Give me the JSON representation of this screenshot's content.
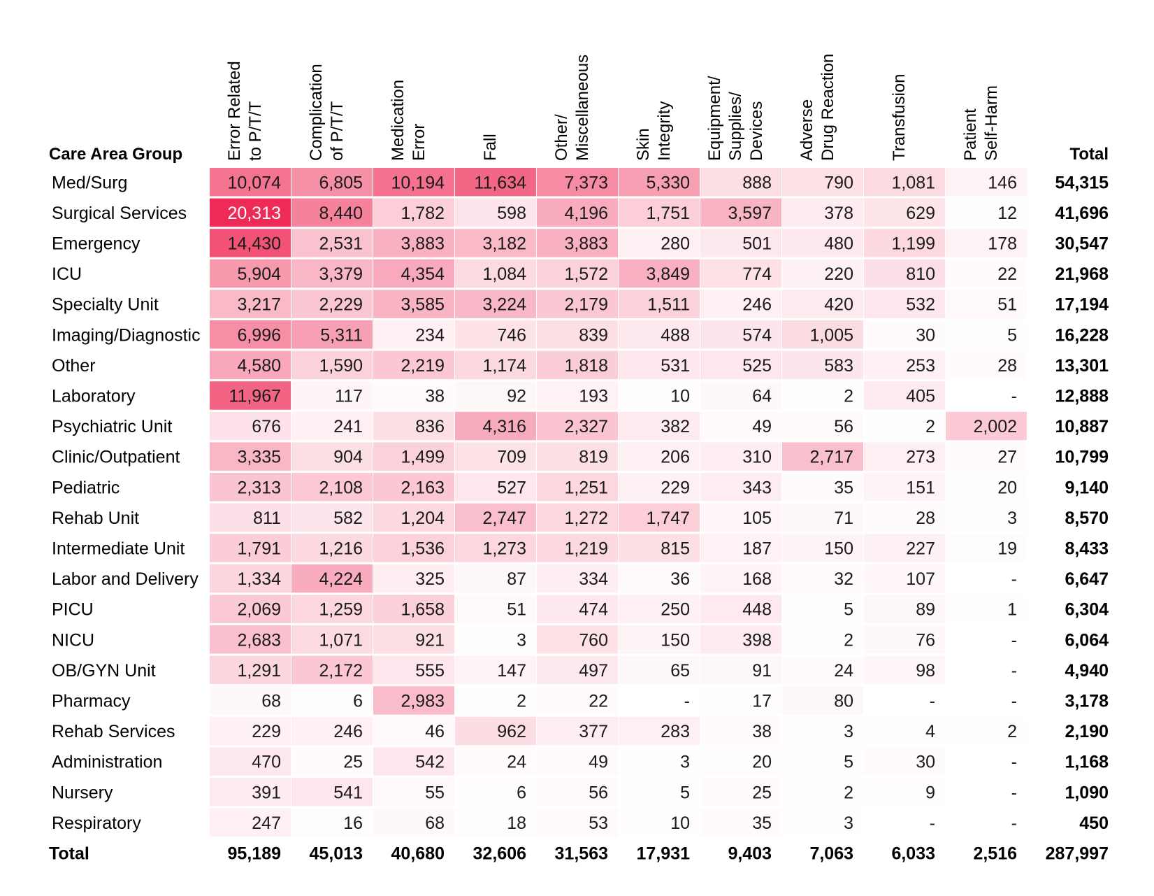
{
  "chart_data": {
    "type": "heatmap",
    "row_header": "Care Area Group",
    "total_label": "Total",
    "columns": [
      [
        "Error Related",
        "to P/T/T"
      ],
      [
        "Complication",
        "of P/T/T"
      ],
      [
        "Medication",
        "Error"
      ],
      [
        "Fall"
      ],
      [
        "Other/",
        "Miscellaneous"
      ],
      [
        "Skin",
        "Integrity"
      ],
      [
        "Equipment/",
        "Supplies/",
        "Devices"
      ],
      [
        "Adverse",
        "Drug Reaction"
      ],
      [
        "Transfusion"
      ],
      [
        "Patient",
        "Self-Harm"
      ]
    ],
    "rows": [
      {
        "label": "Med/Surg",
        "values": [
          "10,074",
          "6,805",
          "10,194",
          "11,634",
          "7,373",
          "5,330",
          "888",
          "790",
          "1,081",
          "146"
        ],
        "total": "54,315"
      },
      {
        "label": "Surgical Services",
        "values": [
          "20,313",
          "8,440",
          "1,782",
          "598",
          "4,196",
          "1,751",
          "3,597",
          "378",
          "629",
          "12"
        ],
        "total": "41,696"
      },
      {
        "label": "Emergency",
        "values": [
          "14,430",
          "2,531",
          "3,883",
          "3,182",
          "3,883",
          "280",
          "501",
          "480",
          "1,199",
          "178"
        ],
        "total": "30,547"
      },
      {
        "label": "ICU",
        "values": [
          "5,904",
          "3,379",
          "4,354",
          "1,084",
          "1,572",
          "3,849",
          "774",
          "220",
          "810",
          "22"
        ],
        "total": "21,968"
      },
      {
        "label": "Specialty Unit",
        "values": [
          "3,217",
          "2,229",
          "3,585",
          "3,224",
          "2,179",
          "1,511",
          "246",
          "420",
          "532",
          "51"
        ],
        "total": "17,194"
      },
      {
        "label": "Imaging/Diagnostic",
        "values": [
          "6,996",
          "5,311",
          "234",
          "746",
          "839",
          "488",
          "574",
          "1,005",
          "30",
          "5"
        ],
        "total": "16,228"
      },
      {
        "label": "Other",
        "values": [
          "4,580",
          "1,590",
          "2,219",
          "1,174",
          "1,818",
          "531",
          "525",
          "583",
          "253",
          "28"
        ],
        "total": "13,301"
      },
      {
        "label": "Laboratory",
        "values": [
          "11,967",
          "117",
          "38",
          "92",
          "193",
          "10",
          "64",
          "2",
          "405",
          "-"
        ],
        "total": "12,888"
      },
      {
        "label": "Psychiatric Unit",
        "values": [
          "676",
          "241",
          "836",
          "4,316",
          "2,327",
          "382",
          "49",
          "56",
          "2",
          "2,002"
        ],
        "total": "10,887"
      },
      {
        "label": "Clinic/Outpatient",
        "values": [
          "3,335",
          "904",
          "1,499",
          "709",
          "819",
          "206",
          "310",
          "2,717",
          "273",
          "27"
        ],
        "total": "10,799"
      },
      {
        "label": "Pediatric",
        "values": [
          "2,313",
          "2,108",
          "2,163",
          "527",
          "1,251",
          "229",
          "343",
          "35",
          "151",
          "20"
        ],
        "total": "9,140"
      },
      {
        "label": "Rehab Unit",
        "values": [
          "811",
          "582",
          "1,204",
          "2,747",
          "1,272",
          "1,747",
          "105",
          "71",
          "28",
          "3"
        ],
        "total": "8,570"
      },
      {
        "label": "Intermediate Unit",
        "values": [
          "1,791",
          "1,216",
          "1,536",
          "1,273",
          "1,219",
          "815",
          "187",
          "150",
          "227",
          "19"
        ],
        "total": "8,433"
      },
      {
        "label": "Labor and Delivery",
        "values": [
          "1,334",
          "4,224",
          "325",
          "87",
          "334",
          "36",
          "168",
          "32",
          "107",
          "-"
        ],
        "total": "6,647"
      },
      {
        "label": "PICU",
        "values": [
          "2,069",
          "1,259",
          "1,658",
          "51",
          "474",
          "250",
          "448",
          "5",
          "89",
          "1"
        ],
        "total": "6,304"
      },
      {
        "label": "NICU",
        "values": [
          "2,683",
          "1,071",
          "921",
          "3",
          "760",
          "150",
          "398",
          "2",
          "76",
          "-"
        ],
        "total": "6,064"
      },
      {
        "label": "OB/GYN Unit",
        "values": [
          "1,291",
          "2,172",
          "555",
          "147",
          "497",
          "65",
          "91",
          "24",
          "98",
          "-"
        ],
        "total": "4,940"
      },
      {
        "label": "Pharmacy",
        "values": [
          "68",
          "6",
          "2,983",
          "2",
          "22",
          "-",
          "17",
          "80",
          "-",
          "-"
        ],
        "total": "3,178"
      },
      {
        "label": "Rehab Services",
        "values": [
          "229",
          "246",
          "46",
          "962",
          "377",
          "283",
          "38",
          "3",
          "4",
          "2"
        ],
        "total": "2,190"
      },
      {
        "label": "Administration",
        "values": [
          "470",
          "25",
          "542",
          "24",
          "49",
          "3",
          "20",
          "5",
          "30",
          "-"
        ],
        "total": "1,168"
      },
      {
        "label": "Nursery",
        "values": [
          "391",
          "541",
          "55",
          "6",
          "56",
          "5",
          "25",
          "2",
          "9",
          "-"
        ],
        "total": "1,090"
      },
      {
        "label": "Respiratory",
        "values": [
          "247",
          "16",
          "68",
          "18",
          "53",
          "10",
          "35",
          "3",
          "-",
          "-"
        ],
        "total": "450"
      }
    ],
    "column_totals": [
      "95,189",
      "45,013",
      "40,680",
      "32,606",
      "31,563",
      "17,931",
      "9,403",
      "7,063",
      "6,033",
      "2,516"
    ],
    "grand_total": "287,997",
    "colors": {
      "low": "#ffffff",
      "high": "#ee2a56",
      "text": "#1a1a1a",
      "text_on_dark": "#ffffff"
    }
  }
}
